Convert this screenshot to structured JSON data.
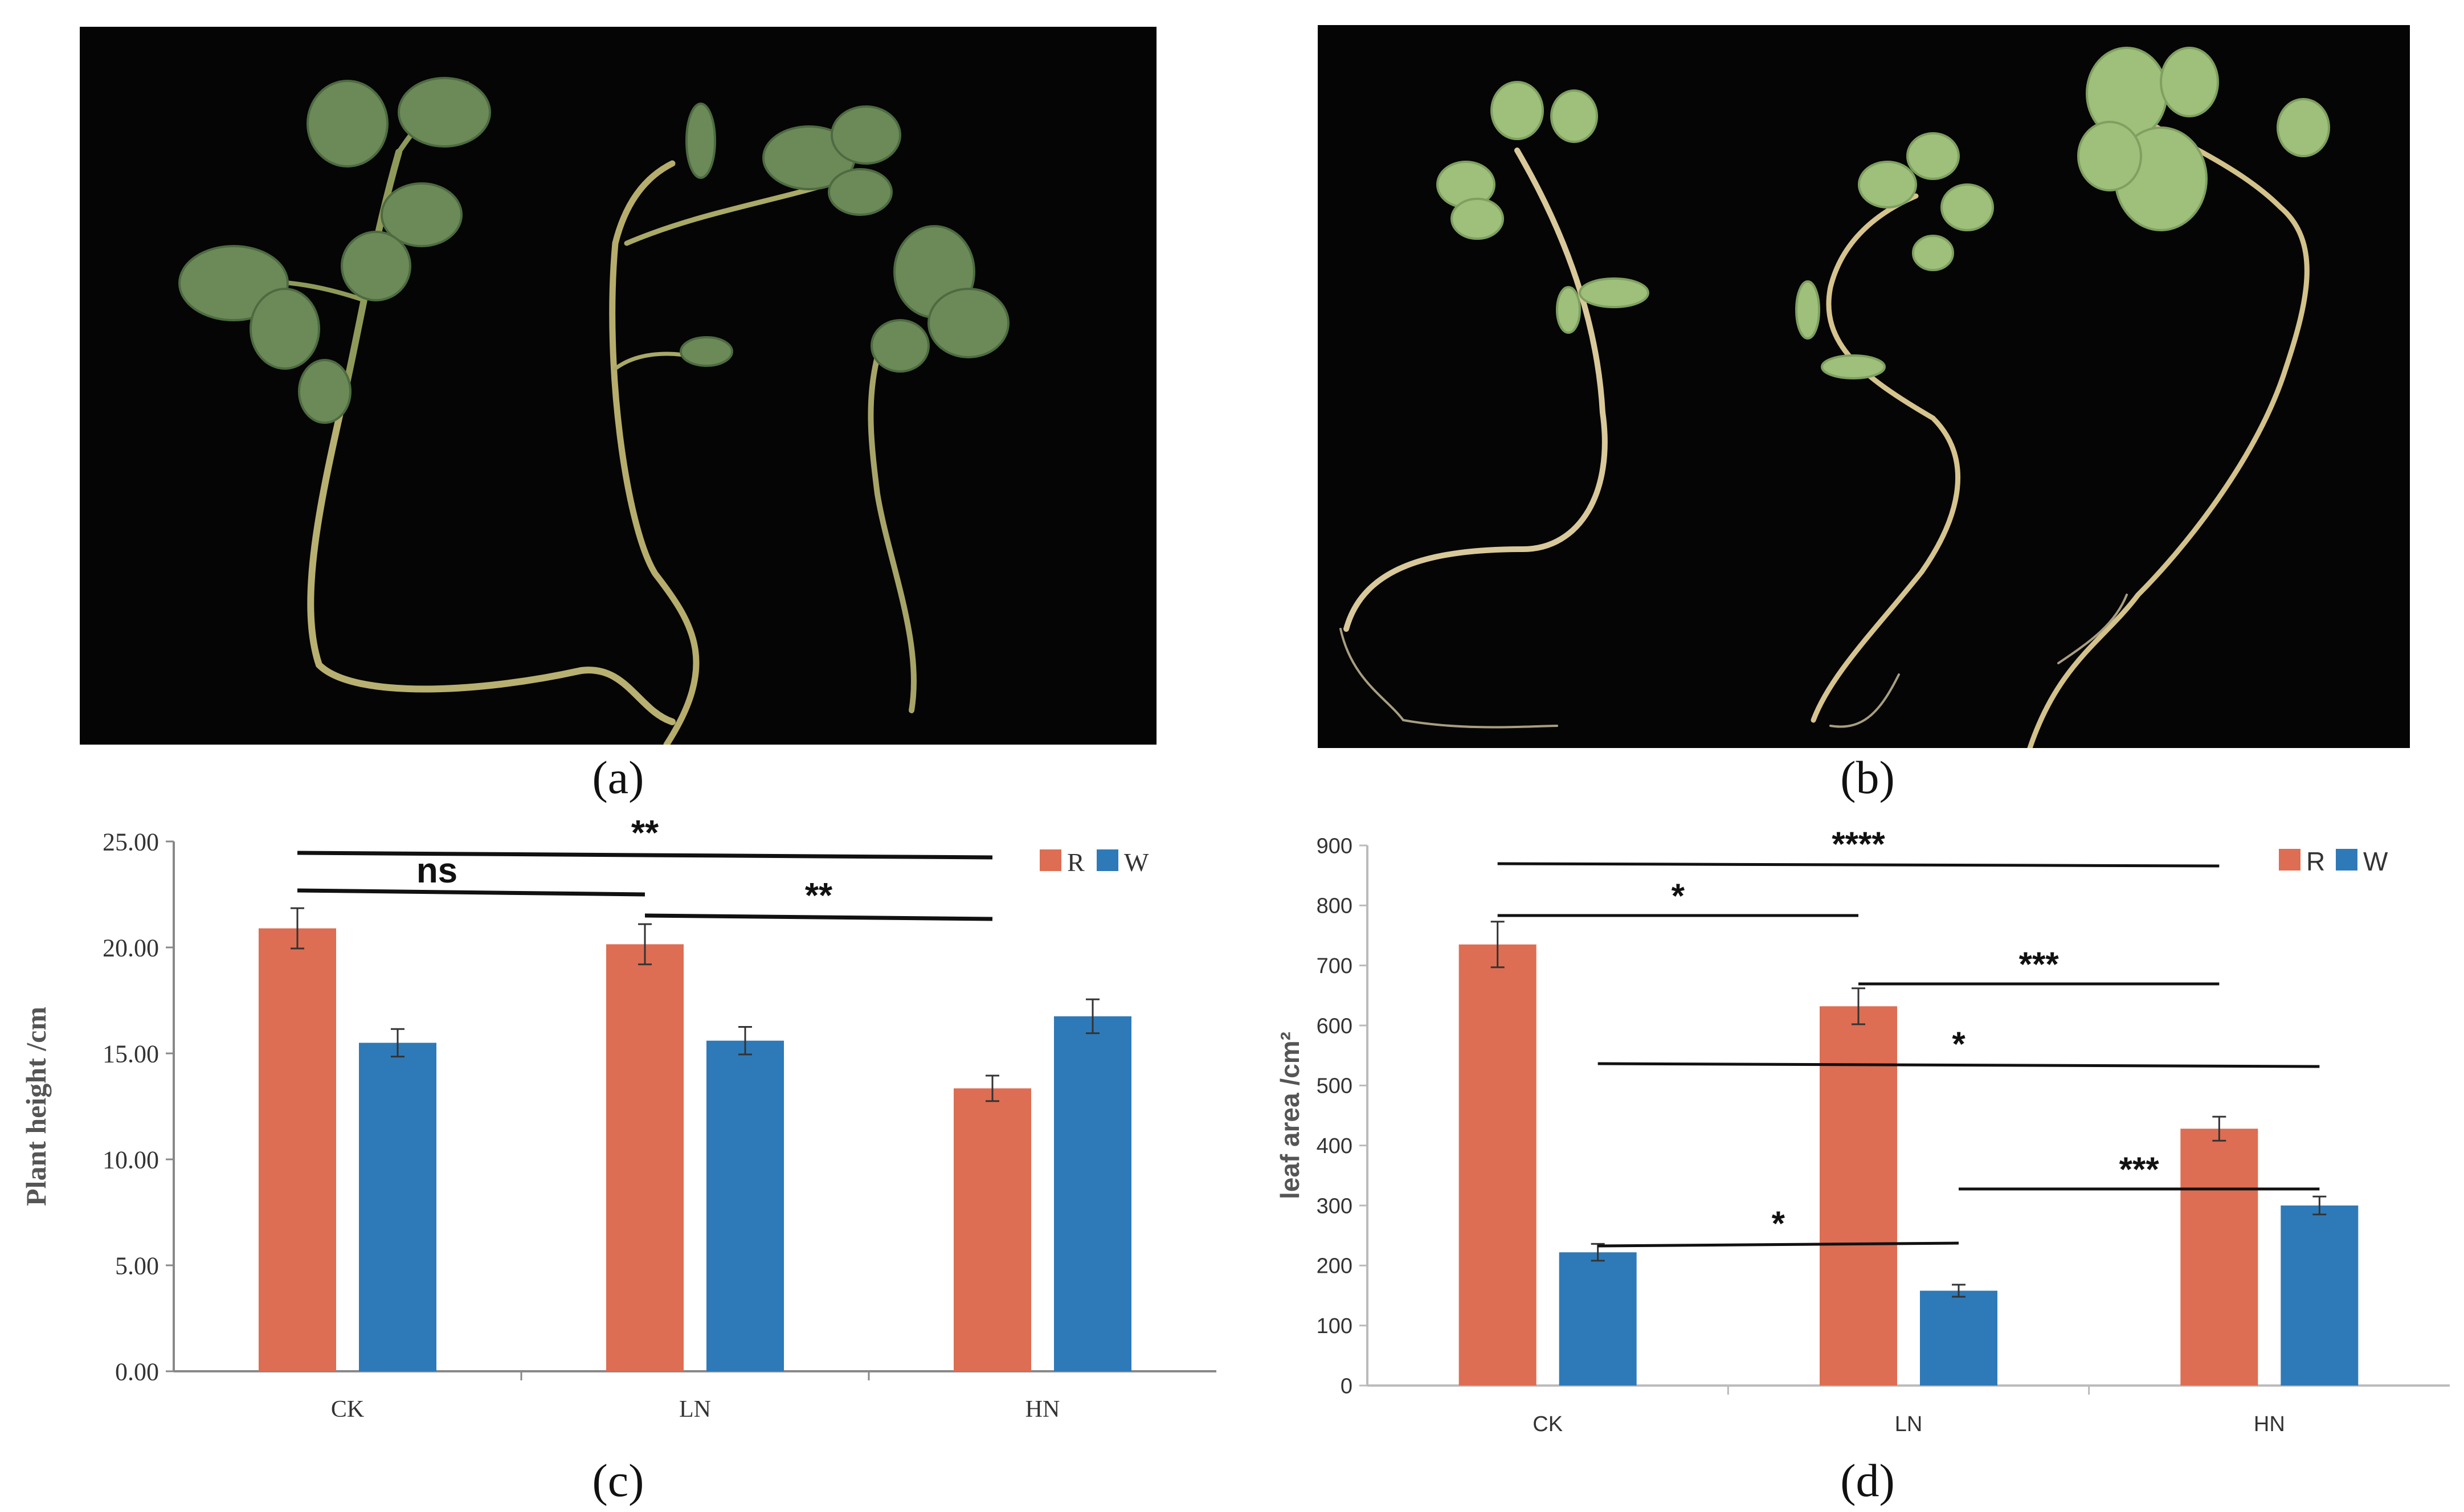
{
  "panels": {
    "a": "(a)",
    "b": "(b)",
    "c": "(c)",
    "d": "(d)"
  },
  "colors": {
    "R": "#dd6e53",
    "W": "#2e7ab8",
    "photo_bg": "#050505"
  },
  "chart_data": [
    {
      "type": "bar",
      "panel": "c",
      "categories": [
        "CK",
        "LN",
        "HN"
      ],
      "series": [
        {
          "name": "R",
          "values": [
            20.9,
            20.15,
            13.35
          ],
          "error": [
            0.95,
            0.95,
            0.6
          ]
        },
        {
          "name": "W",
          "values": [
            15.5,
            15.6,
            16.75
          ],
          "error": [
            0.65,
            0.65,
            0.8
          ]
        }
      ],
      "ylabel": "Plant height /cm",
      "ylim": [
        0,
        25
      ],
      "yticks": [
        "0.00",
        "5.00",
        "10.00",
        "15.00",
        "20.00",
        "25.00"
      ],
      "legend": [
        "R",
        "W"
      ],
      "legend_position": "top-right",
      "grid": false,
      "significance": [
        {
          "from": "CK",
          "to": "HN",
          "label": "**"
        },
        {
          "from": "CK",
          "to": "LN",
          "label": "ns"
        },
        {
          "from": "LN",
          "to": "HN",
          "label": "**"
        }
      ]
    },
    {
      "type": "bar",
      "panel": "d",
      "categories": [
        "CK",
        "LN",
        "HN"
      ],
      "series": [
        {
          "name": "R",
          "values": [
            735,
            632,
            428
          ],
          "error": [
            38,
            30,
            20
          ]
        },
        {
          "name": "W",
          "values": [
            222,
            158,
            300
          ],
          "error": [
            14,
            10,
            15
          ]
        }
      ],
      "ylabel": "leaf area /cm²",
      "ylim": [
        0,
        900
      ],
      "yticks": [
        "0",
        "100",
        "200",
        "300",
        "400",
        "500",
        "600",
        "700",
        "800",
        "900"
      ],
      "legend": [
        "R",
        "W"
      ],
      "legend_position": "top-right",
      "grid": false,
      "significance": [
        {
          "from": "CK R",
          "to": "HN R",
          "label": "****"
        },
        {
          "from": "CK R",
          "to": "LN R",
          "label": "*"
        },
        {
          "from": "LN R",
          "to": "HN R",
          "label": "***"
        },
        {
          "from": "CK W",
          "to": "HN W",
          "label": "*"
        },
        {
          "from": "CK W",
          "to": "LN W",
          "label": "*"
        },
        {
          "from": "LN W",
          "to": "HN W",
          "label": "***"
        }
      ]
    }
  ]
}
